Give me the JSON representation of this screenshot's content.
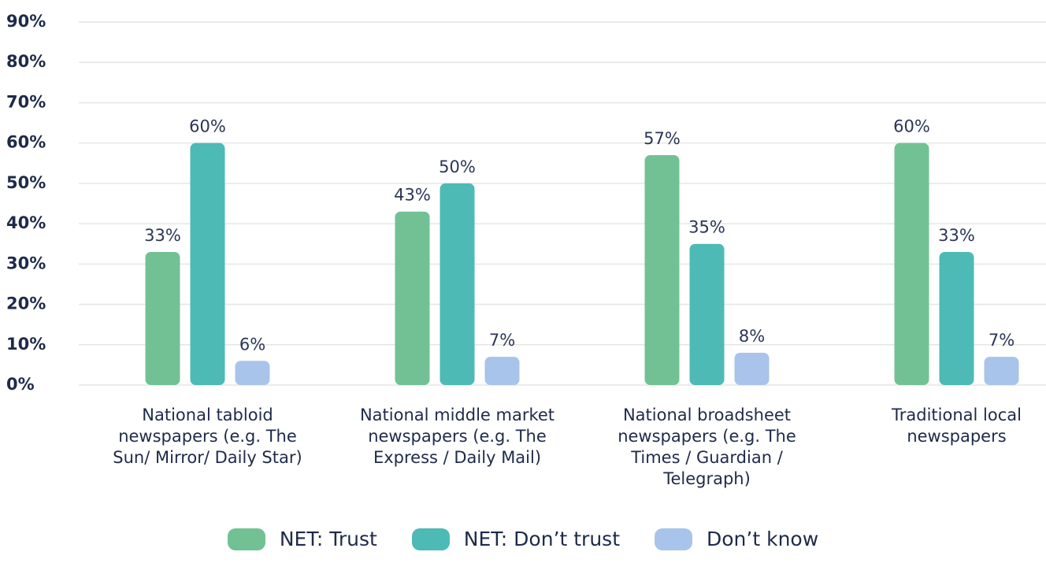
{
  "chart_data": {
    "type": "bar",
    "categories": [
      "National tabloid newspapers (e.g. The Sun/ Mirror/ Daily Star)",
      "National middle market newspapers (e.g. The Express / Daily Mail)",
      "National broadsheet newspapers (e.g. The Times / Guardian / Telegraph)",
      "Traditional local newspapers"
    ],
    "series": [
      {
        "name": "NET: Trust",
        "color": "#72c195",
        "values": [
          33,
          43,
          57,
          60
        ],
        "value_labels": [
          "33%",
          "43%",
          "57%",
          "60%"
        ]
      },
      {
        "name": "NET: Don’t trust",
        "color": "#4dbab5",
        "values": [
          60,
          50,
          35,
          33
        ],
        "value_labels": [
          "60%",
          "50%",
          "35%",
          "33%"
        ]
      },
      {
        "name": "Don’t know",
        "color": "#a9c4ea",
        "values": [
          6,
          7,
          8,
          7
        ],
        "value_labels": [
          "6%",
          "7%",
          "8%",
          "7%"
        ]
      }
    ],
    "ylim": [
      0,
      90
    ],
    "yticks": [
      {
        "value": 0,
        "label": "0%"
      },
      {
        "value": 10,
        "label": "10%"
      },
      {
        "value": 20,
        "label": "20%"
      },
      {
        "value": 30,
        "label": "30%"
      },
      {
        "value": 40,
        "label": "40%"
      },
      {
        "value": 50,
        "label": "50%"
      },
      {
        "value": 60,
        "label": "60%"
      },
      {
        "value": 70,
        "label": "70%"
      },
      {
        "value": 80,
        "label": "80%"
      },
      {
        "value": 90,
        "label": "90%"
      }
    ],
    "grid": true,
    "legend": "bottom"
  }
}
